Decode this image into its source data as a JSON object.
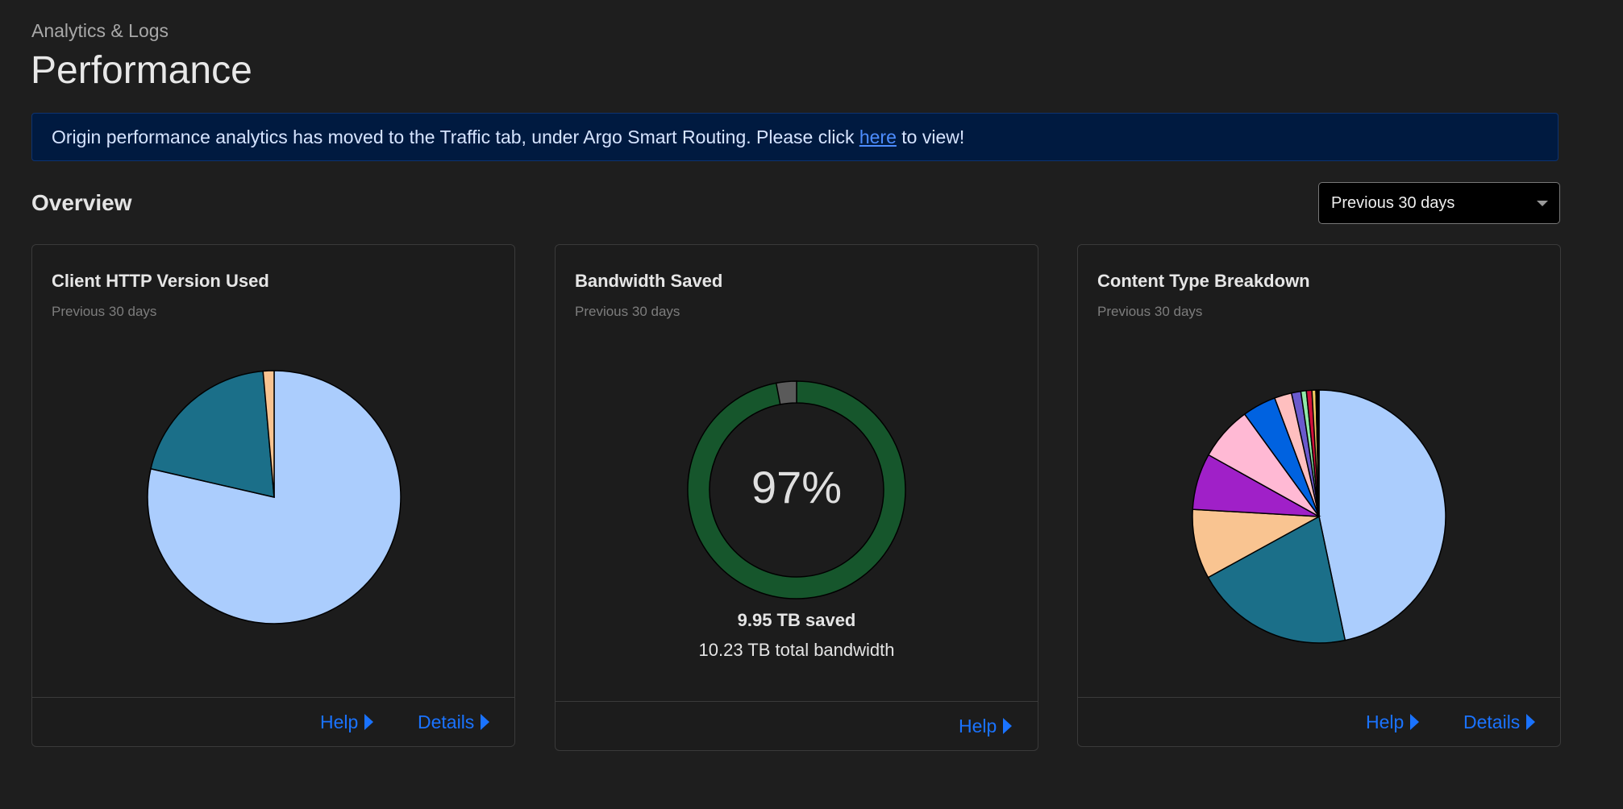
{
  "header": {
    "breadcrumb": "Analytics & Logs",
    "title": "Performance"
  },
  "banner": {
    "text_before": "Origin performance analytics has moved to the Traffic tab, under Argo Smart Routing. Please click ",
    "link": "here",
    "text_after": " to view!"
  },
  "overview": {
    "title": "Overview",
    "range_select": "Previous 30 days"
  },
  "cards": [
    {
      "title": "Client HTTP Version Used",
      "subtitle": "Previous 30 days",
      "help": "Help",
      "details": "Details"
    },
    {
      "title": "Bandwidth Saved",
      "subtitle": "Previous 30 days",
      "percent": "97%",
      "saved": "9.95 TB saved",
      "total": "10.23 TB total bandwidth",
      "help": "Help"
    },
    {
      "title": "Content Type Breakdown",
      "subtitle": "Previous 30 days",
      "help": "Help",
      "details": "Details"
    }
  ],
  "chart_data": [
    {
      "type": "pie",
      "values": [
        78.6,
        20.0,
        1.4
      ],
      "colors": [
        "#abcdfd",
        "#1b6f89",
        "#f9c491"
      ]
    },
    {
      "type": "pie",
      "variant": "donut",
      "values": [
        97,
        3
      ],
      "colors": [
        "#16562c",
        "#5a5a5a"
      ]
    },
    {
      "type": "pie",
      "values": [
        46.7,
        20.3,
        8.9,
        7.2,
        6.9,
        4.3,
        2.2,
        1.2,
        0.7,
        0.7,
        0.5,
        0.4
      ],
      "colors": [
        "#abcdfd",
        "#1b6f89",
        "#f9c491",
        "#a020c8",
        "#ffb9d4",
        "#0062e0",
        "#ffbfbf",
        "#6a5acd",
        "#90e9a8",
        "#d0103a",
        "#f0c860",
        "#000000"
      ]
    }
  ]
}
